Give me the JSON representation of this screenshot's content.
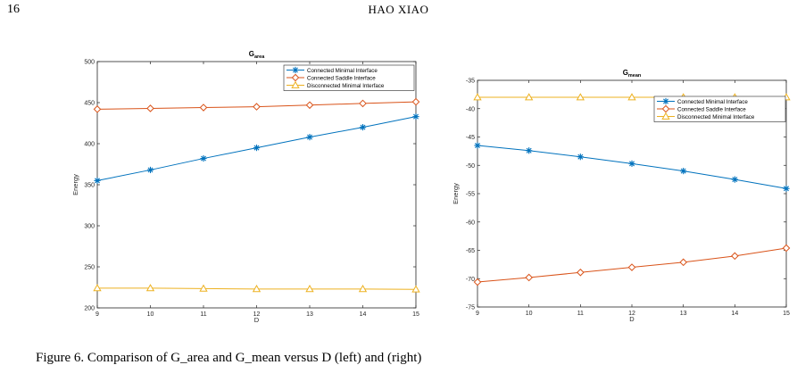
{
  "page": {
    "number": "16",
    "running_head": "HAO XIAO",
    "caption": "Figure 6. Comparison of G_area and G_mean versus D (left) and (right)"
  },
  "colors": {
    "connected_minimal": "#0072BD",
    "connected_saddle": "#D95319",
    "disconnected_minimal": "#EDB120"
  },
  "chart_data": [
    {
      "type": "line",
      "title": "G",
      "title_sub": "area",
      "xlabel": "D",
      "ylabel": "Energy",
      "x": [
        9,
        10,
        11,
        12,
        13,
        14,
        15
      ],
      "xlim": [
        9,
        15
      ],
      "ylim": [
        200,
        500
      ],
      "xticks": [
        "9",
        "10",
        "11",
        "12",
        "13",
        "14",
        "15"
      ],
      "yticks": [
        "200",
        "250",
        "300",
        "350",
        "400",
        "450",
        "500"
      ],
      "grid": false,
      "legend_position": "top-right",
      "series": [
        {
          "name": "Connected Minimal Interface",
          "marker": "asterisk",
          "color": "#0072BD",
          "values": [
            355,
            368,
            382,
            395,
            408,
            420,
            433
          ]
        },
        {
          "name": "Connected Saddle Interface",
          "marker": "diamond",
          "color": "#D95319",
          "values": [
            442,
            443,
            444,
            445,
            447,
            449,
            451
          ]
        },
        {
          "name": "Disconnected Minimal Interface",
          "marker": "triangle",
          "color": "#EDB120",
          "values": [
            224,
            224,
            223.5,
            223,
            223,
            223,
            222.5
          ]
        }
      ]
    },
    {
      "type": "line",
      "title": "G",
      "title_sub": "mean",
      "xlabel": "D",
      "ylabel": "Energy",
      "x": [
        9,
        10,
        11,
        12,
        13,
        14,
        15
      ],
      "xlim": [
        9,
        15
      ],
      "ylim": [
        -75,
        -35
      ],
      "xticks": [
        "9",
        "10",
        "11",
        "12",
        "13",
        "14",
        "15"
      ],
      "yticks": [
        "-75",
        "-70",
        "-65",
        "-60",
        "-55",
        "-50",
        "-45",
        "-40",
        "-35"
      ],
      "grid": false,
      "legend_position": "upper-right",
      "series": [
        {
          "name": "Connected Minimal Interface",
          "marker": "asterisk",
          "color": "#0072BD",
          "values": [
            -46.5,
            -47.4,
            -48.5,
            -49.7,
            -51.0,
            -52.5,
            -54.1
          ]
        },
        {
          "name": "Connected Saddle Interface",
          "marker": "diamond",
          "color": "#D95319",
          "values": [
            -70.6,
            -69.8,
            -68.9,
            -68.0,
            -67.1,
            -66.0,
            -64.6
          ]
        },
        {
          "name": "Disconnected Minimal Interface",
          "marker": "triangle",
          "color": "#EDB120",
          "values": [
            -38.0,
            -38.0,
            -38.0,
            -38.0,
            -38.0,
            -38.0,
            -38.0
          ]
        }
      ]
    }
  ]
}
